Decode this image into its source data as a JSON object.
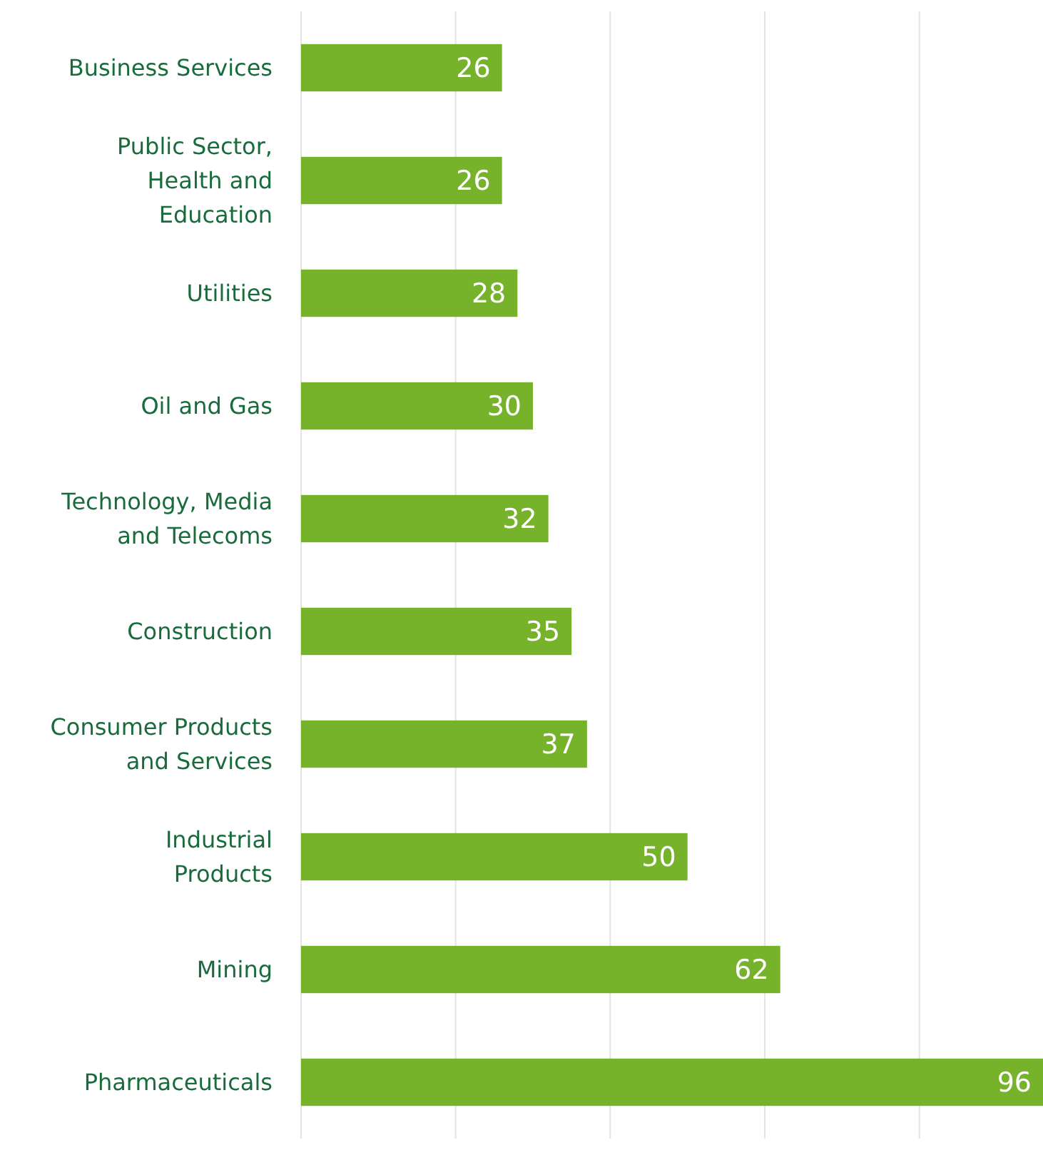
{
  "chart_data": {
    "type": "bar",
    "orientation": "horizontal",
    "categories": [
      "Business Services",
      "Public Sector, Health and Education",
      "Utilities",
      "Oil and Gas",
      "Technology, Media and Telecoms",
      "Construction",
      "Consumer Products and Services",
      "Industrial Products",
      "Mining",
      "Pharmaceuticals"
    ],
    "values": [
      26,
      26,
      28,
      30,
      32,
      35,
      37,
      50,
      62,
      96
    ],
    "color": "#76b22a",
    "xlim": [
      0,
      96
    ],
    "xticks": [
      {
        "value": 0,
        "label": null
      },
      {
        "value": 20,
        "label": null
      },
      {
        "value": 40,
        "label": null
      },
      {
        "value": 60,
        "label": null
      },
      {
        "value": 80,
        "label": null
      }
    ],
    "tick_labels": "y",
    "grid": "x",
    "data_labels": true
  }
}
